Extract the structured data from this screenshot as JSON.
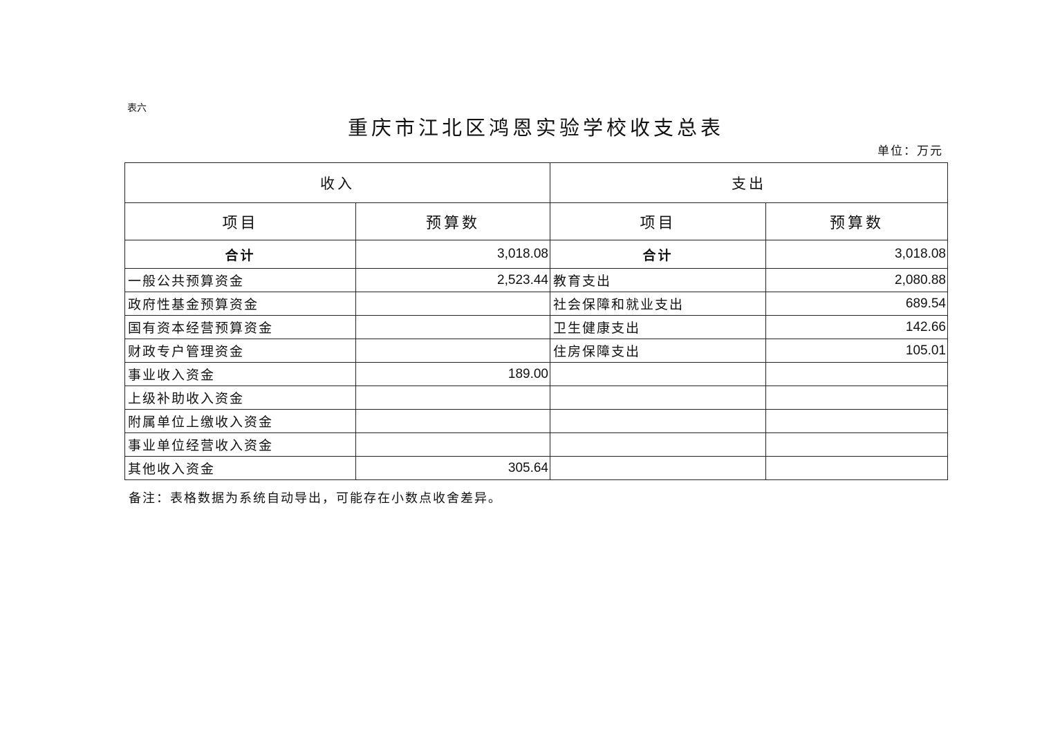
{
  "table_label": "表六",
  "title": "重庆市江北区鸿恩实验学校收支总表",
  "unit": "单位：万元",
  "headers": {
    "income": "收入",
    "expense": "支出",
    "item": "项目",
    "budget": "预算数"
  },
  "total": {
    "income_label": "合计",
    "income_value": "3,018.08",
    "expense_label": "合计",
    "expense_value": "3,018.08"
  },
  "rows": [
    {
      "income_item": "一般公共预算资金",
      "income_value": "2,523.44",
      "expense_item": "教育支出",
      "expense_value": "2,080.88"
    },
    {
      "income_item": "政府性基金预算资金",
      "income_value": "",
      "expense_item": "社会保障和就业支出",
      "expense_value": "689.54"
    },
    {
      "income_item": "国有资本经营预算资金",
      "income_value": "",
      "expense_item": "卫生健康支出",
      "expense_value": "142.66"
    },
    {
      "income_item": "财政专户管理资金",
      "income_value": "",
      "expense_item": "住房保障支出",
      "expense_value": "105.01"
    },
    {
      "income_item": "事业收入资金",
      "income_value": "189.00",
      "expense_item": "",
      "expense_value": ""
    },
    {
      "income_item": "上级补助收入资金",
      "income_value": "",
      "expense_item": "",
      "expense_value": ""
    },
    {
      "income_item": "附属单位上缴收入资金",
      "income_value": "",
      "expense_item": "",
      "expense_value": ""
    },
    {
      "income_item": "事业单位经营收入资金",
      "income_value": "",
      "expense_item": "",
      "expense_value": ""
    },
    {
      "income_item": "其他收入资金",
      "income_value": "305.64",
      "expense_item": "",
      "expense_value": ""
    }
  ],
  "note": "备注：表格数据为系统自动导出，可能存在小数点收舍差异。"
}
